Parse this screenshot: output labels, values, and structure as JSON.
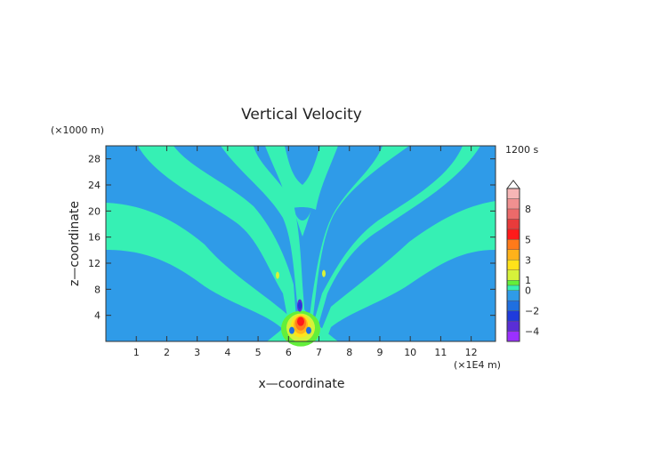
{
  "chart_data": {
    "type": "heatmap",
    "title": "Vertical Velocity",
    "xlabel": "x—coordinate",
    "ylabel": "z—coordinate",
    "x_unit": "(×1E4 m)",
    "y_unit": "(×1000 m)",
    "time_label": "1200 s",
    "xlim": [
      0,
      12.8
    ],
    "ylim": [
      0,
      30
    ],
    "x_ticks": [
      "1",
      "2",
      "3",
      "4",
      "5",
      "6",
      "7",
      "8",
      "9",
      "10",
      "11",
      "12"
    ],
    "y_ticks": [
      "4",
      "8",
      "12",
      "16",
      "20",
      "24",
      "28"
    ],
    "colorbar": {
      "range": [
        -5,
        10
      ],
      "labels": [
        "8",
        "5",
        "3",
        "1",
        "0",
        "−2",
        "−4"
      ],
      "levels": [
        {
          "from": -5,
          "to": -4,
          "color": "#9b30ff"
        },
        {
          "from": -4,
          "to": -3,
          "color": "#5a2ed6"
        },
        {
          "from": -3,
          "to": -2,
          "color": "#1f3bdc"
        },
        {
          "from": -2,
          "to": -1,
          "color": "#1f6fe0"
        },
        {
          "from": -1,
          "to": 0,
          "color": "#2f9be8"
        },
        {
          "from": 0,
          "to": 0.5,
          "color": "#36f0b4"
        },
        {
          "from": 0.5,
          "to": 1,
          "color": "#63ef3a"
        },
        {
          "from": 1,
          "to": 2,
          "color": "#d6f23a"
        },
        {
          "from": 2,
          "to": 3,
          "color": "#ffe21a"
        },
        {
          "from": 3,
          "to": 4,
          "color": "#ffb21a"
        },
        {
          "from": 4,
          "to": 5,
          "color": "#ff7a1a"
        },
        {
          "from": 5,
          "to": 6,
          "color": "#ff1a1a"
        },
        {
          "from": 6,
          "to": 7,
          "color": "#e83b3b"
        },
        {
          "from": 7,
          "to": 8,
          "color": "#ec6a6a"
        },
        {
          "from": 8,
          "to": 9,
          "color": "#f09090"
        },
        {
          "from": 9,
          "to": 10,
          "color": "#f6b6b6"
        }
      ]
    },
    "field": {
      "background_value": -0.5,
      "updraft_center_x": 6.4,
      "updraft_center_z": 2.5
    }
  }
}
